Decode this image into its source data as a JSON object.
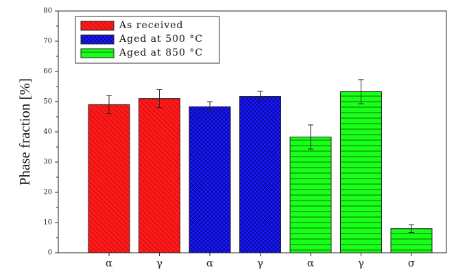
{
  "chart_data": {
    "type": "bar",
    "title": "",
    "xlabel": "",
    "ylabel": "Phase fraction [%]",
    "ylim": [
      0,
      80
    ],
    "yticks": [
      0,
      10,
      20,
      30,
      40,
      50,
      60,
      70,
      80
    ],
    "grid": false,
    "legend_position": "top-left",
    "categories": [
      "α",
      "γ",
      "α",
      "γ",
      "α",
      "γ",
      "σ"
    ],
    "series": [
      {
        "name": "As received",
        "color": "#ff1a1a",
        "pattern": "diagonal",
        "indices": [
          0,
          1
        ]
      },
      {
        "name": "Aged at 500 °C",
        "color": "#1a1aff",
        "pattern": "crosshatch",
        "indices": [
          2,
          3
        ]
      },
      {
        "name": "Aged at 850 °C",
        "color": "#1aff1a",
        "pattern": "horizontal",
        "indices": [
          4,
          5,
          6
        ]
      }
    ],
    "values": [
      49,
      51,
      48.3,
      51.7,
      38.3,
      53.3,
      8
    ],
    "errors": [
      3,
      3,
      1.7,
      1.7,
      4,
      4,
      1.3
    ]
  }
}
